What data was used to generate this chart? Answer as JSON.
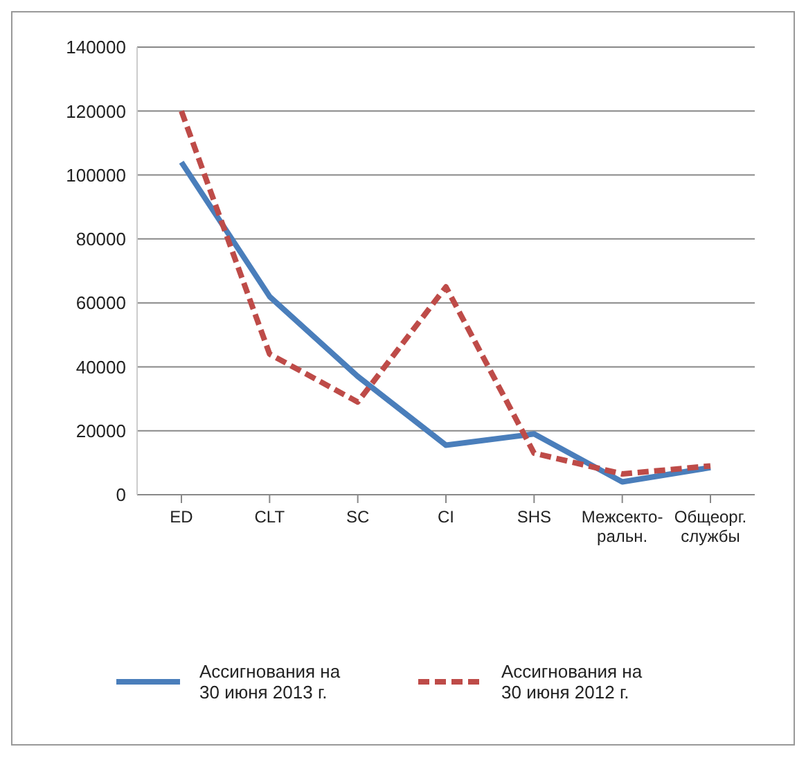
{
  "chart_data": {
    "type": "line",
    "categories": [
      "ED",
      "CLT",
      "SC",
      "CI",
      "SHS",
      "Межсекто-ральн.",
      "Общеорг. службы"
    ],
    "series": [
      {
        "name": "Ассигнования на 30 июня 2013 г.",
        "color": "#4a7ebb",
        "line_style": "solid",
        "values": [
          104000,
          62000,
          37000,
          15500,
          19000,
          4000,
          8500
        ]
      },
      {
        "name": "Ассигнования на 30 июня 2012 г.",
        "color": "#be4b48",
        "line_style": "dashed",
        "values": [
          120000,
          44000,
          29000,
          65000,
          13000,
          6500,
          9000
        ]
      }
    ],
    "ylim": [
      0,
      140000
    ],
    "yticks": [
      0,
      20000,
      40000,
      60000,
      80000,
      100000,
      120000,
      140000
    ],
    "grid": "y",
    "legend": "bottom",
    "marker": "none"
  }
}
